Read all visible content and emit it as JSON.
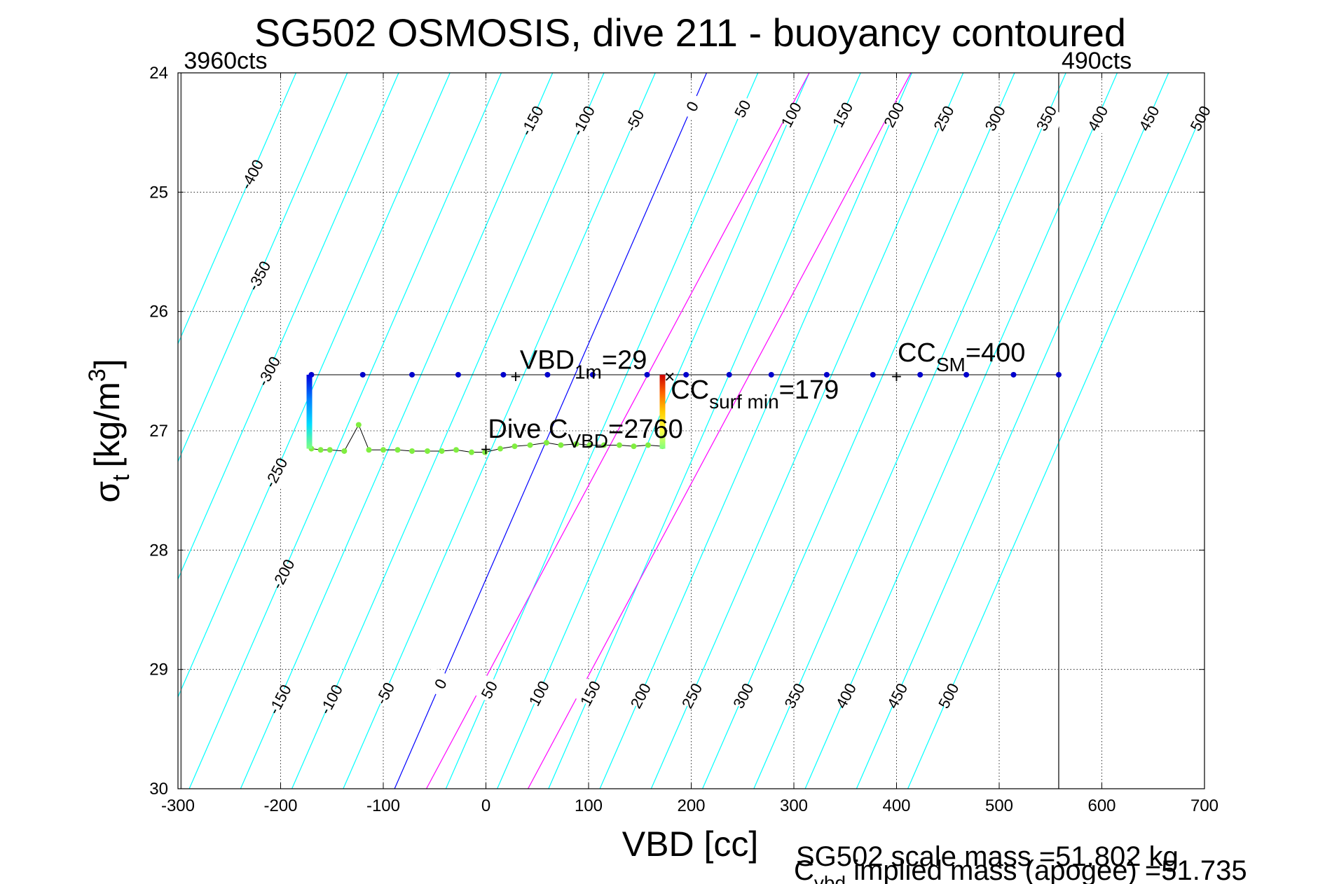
{
  "chart_data": {
    "type": "scatter",
    "title": "SG502 OSMOSIS, dive 211 - buoyancy contoured",
    "xlabel": "VBD [cc]",
    "ylabel": "σ",
    "ylabel_sub": "t",
    "ylabel_unit": "[kg/m",
    "ylabel_sup": "3",
    "ylabel_close": "]",
    "xlim": [
      -300,
      700
    ],
    "ylim": [
      24,
      30
    ],
    "y_reversed": true,
    "grid": true,
    "x_ticks": [
      -300,
      -200,
      -100,
      0,
      100,
      200,
      300,
      400,
      500,
      600,
      700
    ],
    "x_tick_labels": [
      "-300",
      "-200",
      "-100",
      "0",
      "100",
      "200",
      "300",
      "400",
      "500",
      "600",
      "700"
    ],
    "y_ticks": [
      24,
      25,
      26,
      27,
      28,
      29,
      30
    ],
    "y_tick_labels": [
      "24",
      "25",
      "26",
      "27",
      "28",
      "29",
      "30"
    ],
    "limit_lines": [
      {
        "x": -297,
        "label": "3960cts"
      },
      {
        "x": 558,
        "label": "490cts"
      }
    ],
    "contours": {
      "values": [
        -400,
        -350,
        -300,
        -250,
        -200,
        -150,
        -100,
        -50,
        0,
        50,
        100,
        150,
        200,
        250,
        300,
        350,
        400,
        450,
        500
      ],
      "x_at_sigma30": [
        -489,
        -439,
        -389,
        -339,
        -289,
        -239,
        -189,
        -139,
        -89,
        -39,
        11,
        61,
        111,
        161,
        211,
        261,
        311,
        361,
        411
      ],
      "x_at_sigma24": [
        -185,
        -135,
        -85,
        -35,
        15,
        65,
        115,
        165,
        215,
        265,
        315,
        365,
        415,
        465,
        515,
        565,
        615,
        665,
        715
      ],
      "zero_value": 0,
      "cc_surf_min_value": 179,
      "colors": {
        "default": "#00ffff",
        "zero": "#0000ff",
        "highlight": "#ff00ff"
      },
      "top_labels": [
        {
          "value": -400,
          "sigma": 24.85
        },
        {
          "value": -350,
          "sigma": 25.7
        },
        {
          "value": -300,
          "sigma": 26.5
        },
        {
          "value": -250,
          "sigma": 27.35
        },
        {
          "value": -200,
          "sigma": 28.2
        },
        {
          "value": -150,
          "sigma": 24.4
        },
        {
          "value": -100,
          "sigma": 24.4
        },
        {
          "value": -50,
          "sigma": 24.4
        },
        {
          "value": 0,
          "sigma": 24.28
        },
        {
          "value": 50,
          "sigma": 24.3
        },
        {
          "value": 100,
          "sigma": 24.35
        },
        {
          "value": 150,
          "sigma": 24.35
        },
        {
          "value": 200,
          "sigma": 24.35
        },
        {
          "value": 250,
          "sigma": 24.38
        },
        {
          "value": 300,
          "sigma": 24.38
        },
        {
          "value": 350,
          "sigma": 24.38
        },
        {
          "value": 400,
          "sigma": 24.38
        },
        {
          "value": 450,
          "sigma": 24.38
        },
        {
          "value": 500,
          "sigma": 24.38
        }
      ],
      "bottom_labels": [
        {
          "value": -150,
          "sigma": 29.25
        },
        {
          "value": -100,
          "sigma": 29.25
        },
        {
          "value": -50,
          "sigma": 29.2
        },
        {
          "value": 0,
          "sigma": 29.12
        },
        {
          "value": 50,
          "sigma": 29.17
        },
        {
          "value": 100,
          "sigma": 29.2
        },
        {
          "value": 150,
          "sigma": 29.2
        },
        {
          "value": 200,
          "sigma": 29.22
        },
        {
          "value": 250,
          "sigma": 29.22
        },
        {
          "value": 300,
          "sigma": 29.22
        },
        {
          "value": 350,
          "sigma": 29.22
        },
        {
          "value": 400,
          "sigma": 29.22
        },
        {
          "value": 450,
          "sigma": 29.22
        },
        {
          "value": 500,
          "sigma": 29.22
        }
      ]
    },
    "series": [
      {
        "name": "",
        "color": "#0000cc",
        "points": [
          [
            -170,
            26.53
          ],
          [
            -120,
            26.53
          ],
          [
            -72,
            26.53
          ],
          [
            -27,
            26.53
          ],
          [
            17,
            26.53
          ],
          [
            60,
            26.53
          ],
          [
            104,
            26.53
          ],
          [
            157,
            26.53
          ],
          [
            195,
            26.53
          ],
          [
            237,
            26.53
          ],
          [
            278,
            26.53
          ],
          [
            332,
            26.53
          ],
          [
            377,
            26.53
          ],
          [
            423,
            26.53
          ],
          [
            468,
            26.53
          ],
          [
            514,
            26.53
          ],
          [
            558,
            26.53
          ]
        ]
      },
      {
        "name": "",
        "color": "#80ee40",
        "points": [
          [
            -170,
            27.15
          ],
          [
            -161,
            27.16
          ],
          [
            -152,
            27.16
          ],
          [
            -138,
            27.17
          ],
          [
            -124,
            26.95
          ],
          [
            -114,
            27.16
          ],
          [
            -100,
            27.16
          ],
          [
            -86,
            27.16
          ],
          [
            -72,
            27.17
          ],
          [
            -57,
            27.17
          ],
          [
            -43,
            27.17
          ],
          [
            -29,
            27.16
          ],
          [
            -14,
            27.18
          ],
          [
            -1,
            27.18
          ],
          [
            14,
            27.15
          ],
          [
            28,
            27.13
          ],
          [
            43,
            27.12
          ],
          [
            59,
            27.1
          ],
          [
            73,
            27.12
          ],
          [
            88,
            27.11
          ],
          [
            101,
            27.12
          ],
          [
            115,
            27.12
          ],
          [
            130,
            27.12
          ],
          [
            144,
            27.13
          ],
          [
            158,
            27.12
          ],
          [
            172,
            27.13
          ]
        ]
      }
    ],
    "gradient_segments": [
      {
        "x": -172,
        "sigma_from": 26.53,
        "sigma_to": 27.15,
        "colors": [
          "#0000dd",
          "#0080ff",
          "#00ddff",
          "#80ff80"
        ]
      },
      {
        "x": 172,
        "sigma_from": 26.53,
        "sigma_to": 27.15,
        "colors": [
          "#cc0000",
          "#ff6600",
          "#ffcc00",
          "#ffff40",
          "#80ff80"
        ]
      }
    ],
    "markers": [
      {
        "x": 29,
        "sigma": 26.55,
        "symbol": "+",
        "color": "#ff0000"
      },
      {
        "x": 179,
        "sigma": 26.55,
        "symbol": "×",
        "color": "#ff0000"
      },
      {
        "x": 400,
        "sigma": 26.55,
        "symbol": "+",
        "color": "#ff0000"
      },
      {
        "x": 0,
        "sigma": 27.16,
        "symbol": "+",
        "color": "#ff0000"
      }
    ],
    "annotations": [
      {
        "id": "vbd1m",
        "x": 33,
        "sigma": 26.48,
        "main": "VBD",
        "sub": "1m",
        "tail": "=29",
        "color": "#ff0000"
      },
      {
        "id": "ccsurf",
        "x": 180,
        "sigma": 26.73,
        "main": "CC",
        "sub": "surf min",
        "tail": "=179",
        "color": "#ff0000"
      },
      {
        "id": "ccsm",
        "x": 401,
        "sigma": 26.42,
        "main": "CC",
        "sub": "SM",
        "tail": "=400",
        "color": "#ff0000"
      },
      {
        "id": "divec",
        "x": 2,
        "sigma": 27.06,
        "main": "Dive C",
        "sub": "VBD",
        "tail": "=2760",
        "color": "#000000"
      }
    ],
    "footer": {
      "scale_mass": "SG502 scale mass =51.802 kg",
      "implied_mass_main": "C",
      "implied_mass_sub": "vbd",
      "implied_mass_tail": " implied mass (apogee) =51.735"
    }
  }
}
